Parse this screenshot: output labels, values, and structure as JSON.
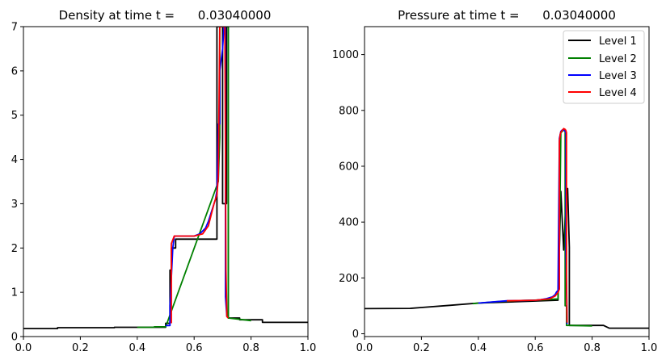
{
  "chart_data": [
    {
      "type": "line",
      "title": "Density at time t =      0.03040000",
      "xlabel": "",
      "ylabel": "",
      "xlim": [
        0,
        1
      ],
      "ylim": [
        0,
        7
      ],
      "xticks": [
        0.0,
        0.2,
        0.4,
        0.6,
        0.8,
        1.0
      ],
      "xtick_labels": [
        "0.0",
        "0.2",
        "0.4",
        "0.6",
        "0.8",
        "1.0"
      ],
      "yticks": [
        0,
        1,
        2,
        3,
        4,
        5,
        6,
        7
      ],
      "ytick_labels": [
        "0",
        "1",
        "2",
        "3",
        "4",
        "5",
        "6",
        "7"
      ],
      "grid": false,
      "legend": null,
      "series": [
        {
          "color": "#000000",
          "x": [
            0.0,
            0.12,
            0.12,
            0.32,
            0.32,
            0.5,
            0.5,
            0.515,
            0.515,
            0.52,
            0.52,
            0.535,
            0.535,
            0.68,
            0.68,
            0.69,
            0.69,
            0.7,
            0.7,
            0.714,
            0.714,
            0.72,
            0.72,
            0.76,
            0.76,
            0.84,
            0.84,
            1.0
          ],
          "y": [
            0.18,
            0.18,
            0.2,
            0.2,
            0.21,
            0.21,
            0.3,
            0.3,
            1.5,
            1.5,
            2.0,
            2.0,
            2.2,
            2.2,
            7.0,
            7.0,
            7.0,
            7.0,
            3.0,
            3.0,
            7.0,
            7.0,
            0.42,
            0.42,
            0.38,
            0.38,
            0.32,
            0.32
          ]
        },
        {
          "color": "#008000",
          "x": [
            0.4,
            0.46,
            0.46,
            0.5,
            0.685,
            0.69,
            0.69,
            0.712,
            0.712,
            0.72,
            0.72,
            0.8
          ],
          "y": [
            0.21,
            0.21,
            0.22,
            0.22,
            3.5,
            4.5,
            7.0,
            7.0,
            7.0,
            7.0,
            0.42,
            0.36
          ]
        },
        {
          "color": "#0000ff",
          "x": [
            0.5,
            0.515,
            0.515,
            0.525,
            0.53,
            0.6,
            0.62,
            0.64,
            0.65,
            0.66,
            0.67,
            0.675,
            0.68,
            0.685,
            0.69,
            0.69,
            0.7,
            0.705,
            0.71,
            0.71,
            0.715
          ],
          "y": [
            0.25,
            0.25,
            0.7,
            2.0,
            2.27,
            2.27,
            2.32,
            2.45,
            2.6,
            2.8,
            3.0,
            3.1,
            3.3,
            4.8,
            4.8,
            6.0,
            6.5,
            7.0,
            7.0,
            0.9,
            0.45
          ]
        },
        {
          "color": "#ff0000",
          "x": [
            0.52,
            0.52,
            0.53,
            0.6,
            0.63,
            0.65,
            0.66,
            0.67,
            0.68,
            0.685,
            0.69,
            0.69,
            0.708,
            0.708,
            0.712,
            0.715,
            0.72
          ],
          "y": [
            0.3,
            2.1,
            2.27,
            2.27,
            2.32,
            2.5,
            2.75,
            3.0,
            3.2,
            3.6,
            7.0,
            7.0,
            7.0,
            7.0,
            1.5,
            0.45,
            0.42
          ]
        }
      ]
    },
    {
      "type": "line",
      "title": "Pressure at time t =      0.03040000",
      "xlabel": "",
      "ylabel": "",
      "xlim": [
        0,
        1
      ],
      "ylim": [
        -10,
        1100
      ],
      "xticks": [
        0.0,
        0.2,
        0.4,
        0.6,
        0.8,
        1.0
      ],
      "xtick_labels": [
        "0.0",
        "0.2",
        "0.4",
        "0.6",
        "0.8",
        "1.0"
      ],
      "yticks": [
        0,
        200,
        400,
        600,
        800,
        1000
      ],
      "ytick_labels": [
        "0",
        "200",
        "400",
        "600",
        "800",
        "1000"
      ],
      "grid": false,
      "legend": {
        "position": "top-right",
        "entries": [
          {
            "label": "Level 1",
            "color": "#000000"
          },
          {
            "label": "Level 2",
            "color": "#008000"
          },
          {
            "label": "Level 3",
            "color": "#0000ff"
          },
          {
            "label": "Level 4",
            "color": "#ff0000"
          }
        ]
      },
      "series": [
        {
          "name": "Level 1",
          "color": "#000000",
          "x": [
            0.0,
            0.16,
            0.2,
            0.3,
            0.4,
            0.4,
            0.68,
            0.68,
            0.69,
            0.69,
            0.7,
            0.7,
            0.71,
            0.71,
            0.714,
            0.714,
            0.72,
            0.72,
            0.84,
            0.86,
            0.86,
            1.0
          ],
          "y": [
            90,
            91,
            94,
            102,
            110,
            110,
            120,
            120,
            510,
            510,
            300,
            300,
            515,
            515,
            520,
            520,
            310,
            30,
            30,
            20,
            20,
            20
          ]
        },
        {
          "name": "Level 2",
          "color": "#008000",
          "x": [
            0.38,
            0.48,
            0.55,
            0.62,
            0.68,
            0.685,
            0.69,
            0.7,
            0.705,
            0.705,
            0.71,
            0.71,
            0.72,
            0.8
          ],
          "y": [
            108,
            116,
            119,
            121,
            125,
            300,
            720,
            730,
            725,
            100,
            100,
            30,
            30,
            28
          ]
        },
        {
          "name": "Level 3",
          "color": "#0000ff",
          "x": [
            0.4,
            0.5,
            0.6,
            0.62,
            0.64,
            0.66,
            0.67,
            0.675,
            0.68,
            0.685,
            0.69,
            0.695,
            0.7,
            0.705,
            0.708,
            0.708,
            0.712
          ],
          "y": [
            110,
            118,
            120,
            122,
            126,
            132,
            140,
            150,
            155,
            700,
            725,
            730,
            730,
            725,
            720,
            300,
            35
          ]
        },
        {
          "name": "Level 4",
          "color": "#ff0000",
          "x": [
            0.5,
            0.55,
            0.6,
            0.65,
            0.67,
            0.68,
            0.685,
            0.685,
            0.688,
            0.69,
            0.695,
            0.7,
            0.705,
            0.708,
            0.71,
            0.71,
            0.712
          ],
          "y": [
            118,
            119,
            120,
            125,
            135,
            148,
            160,
            690,
            715,
            722,
            728,
            735,
            732,
            728,
            720,
            200,
            40
          ]
        }
      ]
    }
  ]
}
